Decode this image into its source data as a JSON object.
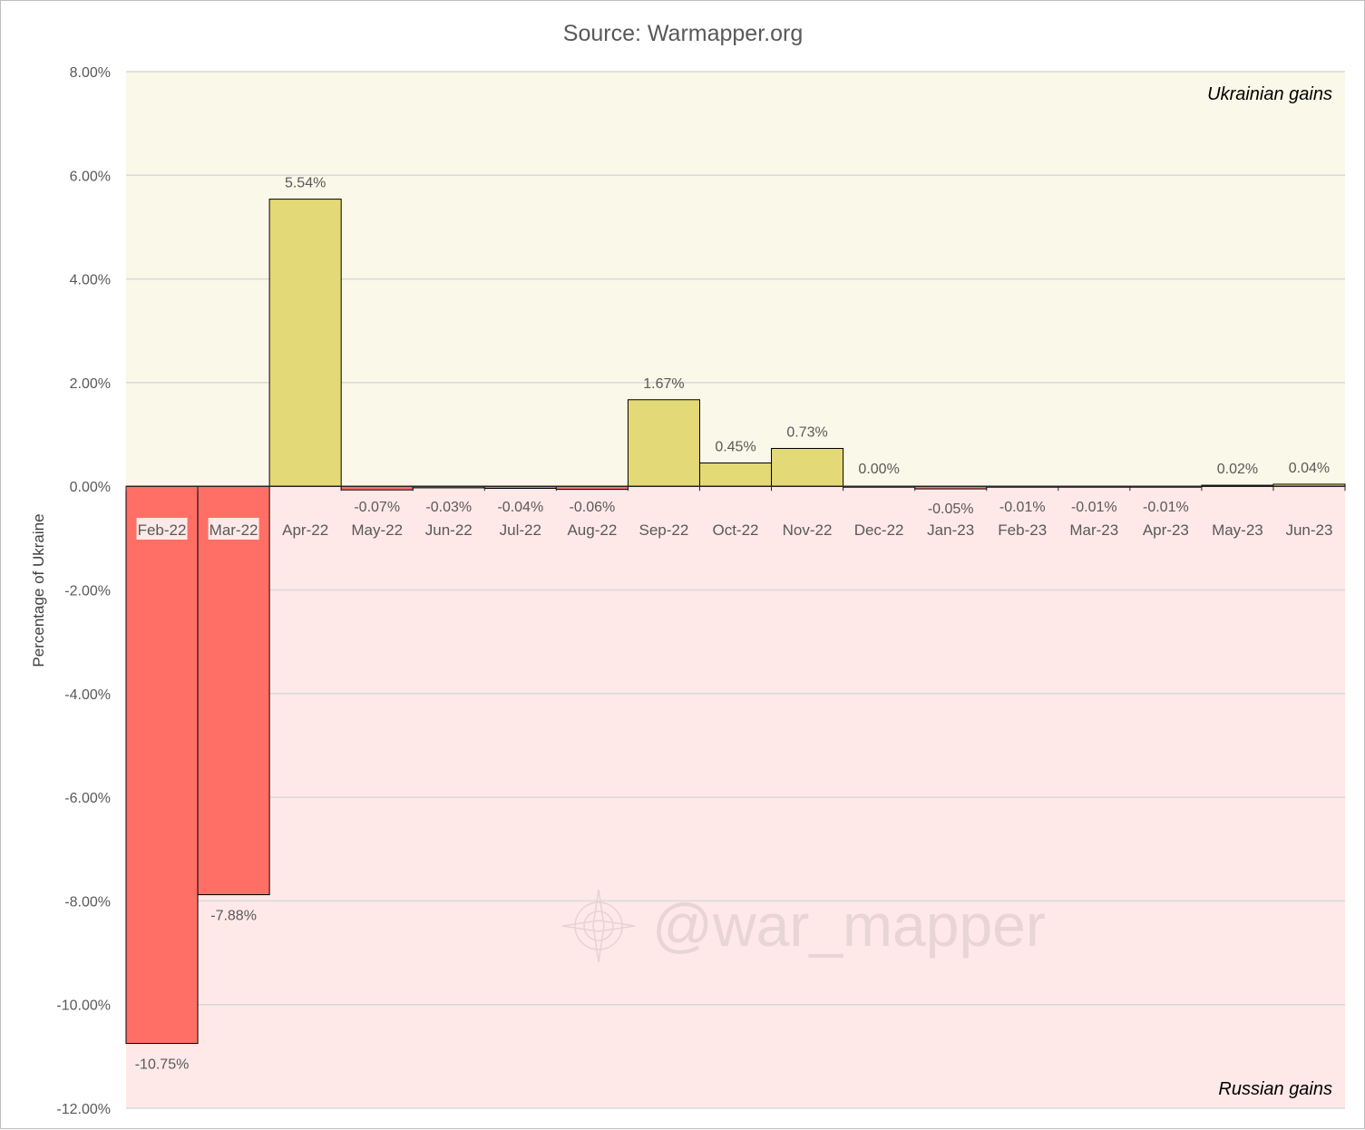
{
  "chart_data": {
    "type": "bar",
    "title": "Source: Warmapper.org",
    "ylabel": "Percentage of Ukraine",
    "xlabel": "",
    "ylim": [
      -12,
      8
    ],
    "yticks": [
      8,
      6,
      4,
      2,
      0,
      -2,
      -4,
      -6,
      -8,
      -10,
      -12
    ],
    "ytick_labels": [
      "8.00%",
      "6.00%",
      "4.00%",
      "2.00%",
      "0.00%",
      "-2.00%",
      "-4.00%",
      "-6.00%",
      "-8.00%",
      "-10.00%",
      "-12.00%"
    ],
    "grid": true,
    "categories": [
      "Feb-22",
      "Mar-22",
      "Apr-22",
      "May-22",
      "Jun-22",
      "Jul-22",
      "Aug-22",
      "Sep-22",
      "Oct-22",
      "Nov-22",
      "Dec-22",
      "Jan-23",
      "Feb-23",
      "Mar-23",
      "Apr-23",
      "May-23",
      "Jun-23"
    ],
    "values": [
      -10.75,
      -7.88,
      5.54,
      -0.07,
      -0.03,
      -0.04,
      -0.06,
      1.67,
      0.45,
      0.73,
      0.0,
      -0.05,
      -0.01,
      -0.01,
      -0.01,
      0.02,
      0.04
    ],
    "value_labels": [
      "-10.75%",
      "-7.88%",
      "5.54%",
      "-0.07%",
      "-0.03%",
      "-0.04%",
      "-0.06%",
      "1.67%",
      "0.45%",
      "0.73%",
      "0.00%",
      "-0.05%",
      "-0.01%",
      "-0.01%",
      "-0.01%",
      "0.02%",
      "0.04%"
    ],
    "annotations": {
      "positive_region": "Ukrainian gains",
      "negative_region": "Russian gains"
    },
    "colors": {
      "positive_bar": "#e3d977",
      "negative_bar": "#ff6f66",
      "positive_region_bg": "#faf8e8",
      "negative_region_bg": "#ffe8e8",
      "gridline": "#d9d9d9",
      "bar_outline": "#000000"
    },
    "watermark": "@war_mapper"
  }
}
